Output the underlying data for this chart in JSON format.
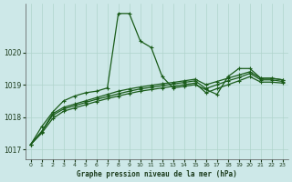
{
  "title": "Graphe pression niveau de la mer (hPa)",
  "background_color": "#cde8e8",
  "grid_color": "#b0d4cc",
  "line_color": "#1a5c1a",
  "xlim": [
    -0.5,
    23.5
  ],
  "ylim": [
    1016.7,
    1021.5
  ],
  "yticks": [
    1017,
    1018,
    1019,
    1020
  ],
  "xticks": [
    0,
    1,
    2,
    3,
    4,
    5,
    6,
    7,
    8,
    9,
    10,
    11,
    12,
    13,
    14,
    15,
    16,
    17,
    18,
    19,
    20,
    21,
    22,
    23
  ],
  "series1_x": [
    0,
    1,
    2,
    3,
    4,
    5,
    6,
    7,
    8,
    9,
    10,
    11,
    12,
    13,
    14,
    15,
    16,
    17,
    18,
    19,
    20,
    21,
    22,
    23
  ],
  "series1_y": [
    1017.15,
    1017.7,
    1018.15,
    1018.5,
    1018.65,
    1018.75,
    1018.8,
    1018.9,
    1021.2,
    1021.2,
    1020.35,
    1020.15,
    1019.25,
    1018.9,
    1018.95,
    1019.0,
    1018.85,
    1018.7,
    1019.25,
    1019.5,
    1019.5,
    1019.2,
    1019.2,
    1019.15
  ],
  "series2_x": [
    0,
    1,
    2,
    3,
    4,
    5,
    6,
    7,
    8,
    9,
    10,
    11,
    12,
    13,
    14,
    15,
    16,
    17,
    18,
    19,
    20,
    21,
    22,
    23
  ],
  "series2_y": [
    1017.15,
    1017.55,
    1018.1,
    1018.3,
    1018.4,
    1018.5,
    1018.6,
    1018.7,
    1018.8,
    1018.87,
    1018.93,
    1018.98,
    1019.03,
    1019.07,
    1019.12,
    1019.17,
    1019.0,
    1019.1,
    1019.2,
    1019.3,
    1019.4,
    1019.2,
    1019.2,
    1019.15
  ],
  "series3_x": [
    0,
    1,
    2,
    3,
    4,
    5,
    6,
    7,
    8,
    9,
    10,
    11,
    12,
    13,
    14,
    15,
    16,
    17,
    18,
    19,
    20,
    21,
    22,
    23
  ],
  "series3_y": [
    1017.15,
    1017.55,
    1018.05,
    1018.25,
    1018.35,
    1018.45,
    1018.55,
    1018.63,
    1018.72,
    1018.8,
    1018.87,
    1018.92,
    1018.97,
    1019.02,
    1019.07,
    1019.12,
    1018.88,
    1019.0,
    1019.12,
    1019.22,
    1019.35,
    1019.15,
    1019.15,
    1019.1
  ],
  "series4_x": [
    0,
    1,
    2,
    3,
    4,
    5,
    6,
    7,
    8,
    9,
    10,
    11,
    12,
    13,
    14,
    15,
    16,
    17,
    18,
    19,
    20,
    21,
    22,
    23
  ],
  "series4_y": [
    1017.15,
    1017.5,
    1017.95,
    1018.18,
    1018.28,
    1018.38,
    1018.48,
    1018.57,
    1018.65,
    1018.73,
    1018.8,
    1018.85,
    1018.9,
    1018.95,
    1019.0,
    1019.05,
    1018.75,
    1018.88,
    1019.0,
    1019.12,
    1019.25,
    1019.08,
    1019.08,
    1019.05
  ]
}
